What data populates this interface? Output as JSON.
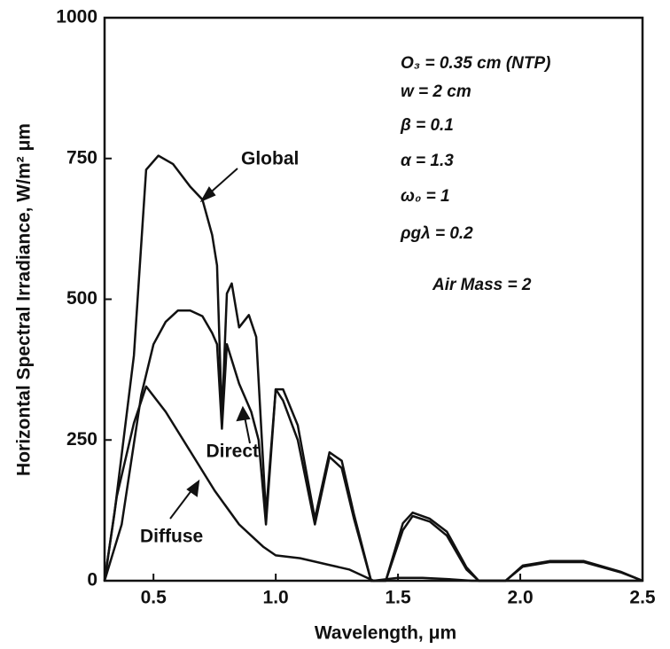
{
  "chart_data": {
    "type": "line",
    "x_label": "Wavelength, μm",
    "y_label": "Horizontal Spectral Irradiance, W/m² μm",
    "xlim": [
      0.3,
      2.5
    ],
    "ylim": [
      0,
      1000
    ],
    "xticks": [
      0.5,
      {
        "value": 1.0,
        "label": "1.0"
      },
      1.5,
      {
        "value": 2.0,
        "label": "2.0"
      },
      2.5
    ],
    "yticks": [
      0,
      250,
      500,
      750,
      1000
    ],
    "series": [
      {
        "name": "Global",
        "color": "#111111",
        "x": [
          0.3,
          0.34,
          0.42,
          0.47,
          0.52,
          0.58,
          0.65,
          0.7,
          0.74,
          0.76,
          0.78,
          0.8,
          0.82,
          0.85,
          0.89,
          0.92,
          0.96,
          1.0,
          1.03,
          1.09,
          1.16,
          1.22,
          1.27,
          1.32,
          1.39,
          1.45,
          1.52,
          1.56,
          1.63,
          1.7,
          1.78,
          1.83,
          1.94,
          2.01,
          2.12,
          2.26,
          2.41,
          2.5
        ],
        "values": [
          0,
          118,
          400,
          730,
          755,
          740,
          700,
          677,
          614,
          560,
          290,
          510,
          528,
          450,
          472,
          433,
          118,
          340,
          340,
          276,
          110,
          228,
          213,
          118,
          0,
          0,
          102,
          121,
          110,
          87,
          24,
          0,
          0,
          27,
          35,
          35,
          16,
          0
        ]
      },
      {
        "name": "Direct",
        "color": "#111111",
        "x": [
          0.3,
          0.37,
          0.45,
          0.5,
          0.55,
          0.6,
          0.65,
          0.7,
          0.74,
          0.76,
          0.78,
          0.8,
          0.85,
          0.9,
          0.93,
          0.96,
          1.0,
          1.03,
          1.09,
          1.16,
          1.22,
          1.27,
          1.32,
          1.39,
          1.45,
          1.52,
          1.56,
          1.63,
          1.7,
          1.78,
          1.83,
          1.94,
          2.01,
          2.12,
          2.26,
          2.41,
          2.5
        ],
        "values": [
          0,
          100,
          330,
          420,
          460,
          480,
          480,
          470,
          440,
          420,
          270,
          420,
          350,
          300,
          250,
          100,
          340,
          320,
          250,
          100,
          220,
          200,
          110,
          0,
          0,
          90,
          115,
          105,
          80,
          20,
          0,
          0,
          25,
          33,
          33,
          15,
          0
        ]
      },
      {
        "name": "Diffuse",
        "color": "#111111",
        "x": [
          0.3,
          0.35,
          0.42,
          0.47,
          0.55,
          0.65,
          0.75,
          0.85,
          0.9,
          0.95,
          1.0,
          1.1,
          1.2,
          1.3,
          1.35,
          1.4,
          1.5,
          1.6,
          1.7,
          1.8,
          2.5
        ],
        "values": [
          0,
          150,
          280,
          345,
          300,
          230,
          160,
          100,
          80,
          60,
          45,
          40,
          30,
          20,
          10,
          0,
          5,
          5,
          3,
          0,
          0
        ]
      }
    ],
    "annotations": [
      "O₃ = 0.35 cm (NTP)",
      "w   = 2 cm",
      "β   = 0.1",
      "α   = 1.3",
      "ω₀ = 1",
      "ρgλ = 0.2",
      "Air Mass = 2"
    ]
  }
}
